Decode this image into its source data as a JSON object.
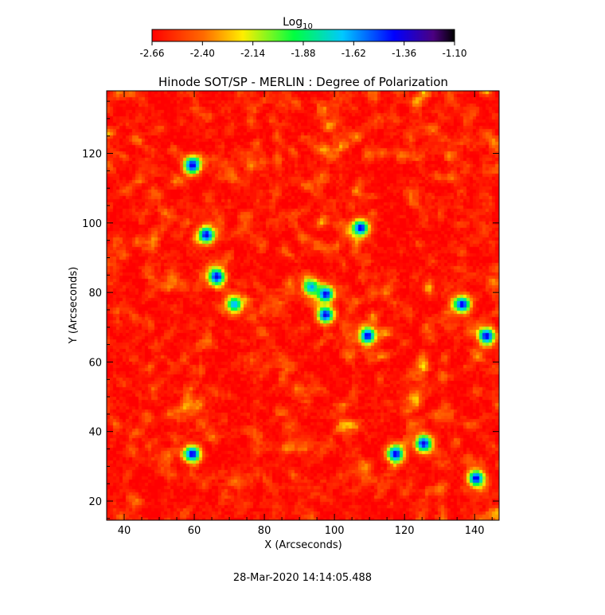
{
  "colorbar": {
    "title": "Log",
    "title_sub": "10",
    "ticks": [
      "-2.66",
      "-2.40",
      "-2.14",
      "-1.88",
      "-1.62",
      "-1.36",
      "-1.10"
    ],
    "range": [
      -2.66,
      -1.1
    ]
  },
  "chart_data": {
    "type": "heatmap",
    "title": "Hinode SOT/SP - MERLIN : Degree of Polarization",
    "xlabel": "X (Arcseconds)",
    "ylabel": "Y (Arcseconds)",
    "xlim": [
      35,
      147
    ],
    "ylim": [
      14.5,
      138
    ],
    "xticks": [
      40,
      60,
      80,
      100,
      120,
      140
    ],
    "yticks": [
      20,
      40,
      60,
      80,
      100,
      120
    ],
    "colorscale": "Log10 degree of polarization, rainbow (red -> purple/black)",
    "value_range": [
      -2.66,
      -1.1
    ],
    "colors": [
      "#ff0000",
      "#ff6a00",
      "#ffee00",
      "#00ff40",
      "#00c8ff",
      "#0000ff",
      "#000000"
    ],
    "features": [
      {
        "x": 59,
        "y": 117,
        "value": -1.36
      },
      {
        "x": 63,
        "y": 97,
        "value": -1.36
      },
      {
        "x": 66,
        "y": 85,
        "value": -1.36
      },
      {
        "x": 71,
        "y": 77,
        "value": -1.62
      },
      {
        "x": 97,
        "y": 80,
        "value": -1.36
      },
      {
        "x": 97,
        "y": 74,
        "value": -1.36
      },
      {
        "x": 93,
        "y": 82,
        "value": -1.62
      },
      {
        "x": 107,
        "y": 99,
        "value": -1.36
      },
      {
        "x": 109,
        "y": 68,
        "value": -1.36
      },
      {
        "x": 136,
        "y": 77,
        "value": -1.36
      },
      {
        "x": 143,
        "y": 68,
        "value": -1.36
      },
      {
        "x": 59,
        "y": 34,
        "value": -1.36
      },
      {
        "x": 125,
        "y": 37,
        "value": -1.36
      },
      {
        "x": 140,
        "y": 27,
        "value": -1.36
      },
      {
        "x": 117,
        "y": 34,
        "value": -1.36
      }
    ]
  },
  "footer": {
    "timestamp": "28-Mar-2020 14:14:05.488"
  }
}
